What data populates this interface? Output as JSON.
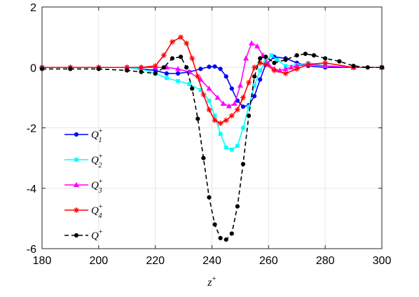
{
  "chart_data": {
    "type": "line",
    "title": "",
    "xlabel": "z+",
    "xlabel_parts": {
      "base": "z",
      "sup": "+"
    },
    "ylabel": "",
    "xlim": [
      180,
      300
    ],
    "ylim": [
      -6,
      2
    ],
    "xticks": [
      180,
      200,
      220,
      240,
      260,
      280,
      300
    ],
    "yticks": [
      -6,
      -4,
      -2,
      0,
      2
    ],
    "grid": true,
    "legend_position": "lower-left",
    "series": [
      {
        "name": "Q1+",
        "label_base": "Q",
        "label_sub": "1",
        "label_sup": "+",
        "color": "#0000ff",
        "marker": "circle",
        "dash": "solid",
        "x": [
          180,
          190,
          200,
          210,
          215,
          220,
          224,
          228,
          232,
          236,
          239,
          241,
          243,
          245,
          247,
          249,
          251,
          253,
          255,
          257,
          259,
          262,
          266,
          270,
          274,
          280,
          290,
          300
        ],
        "y": [
          0,
          0,
          0,
          0,
          -0.05,
          -0.1,
          -0.2,
          -0.2,
          -0.15,
          -0.05,
          0.02,
          0.03,
          -0.05,
          -0.3,
          -0.7,
          -1.1,
          -1.3,
          -1.25,
          -0.95,
          -0.4,
          0.1,
          0.35,
          0.3,
          0.15,
          0.05,
          0,
          0,
          0
        ]
      },
      {
        "name": "Q2+",
        "label_base": "Q",
        "label_sub": "2",
        "label_sup": "+",
        "color": "#00ffff",
        "marker": "square",
        "dash": "solid",
        "x": [
          180,
          190,
          200,
          210,
          215,
          220,
          224,
          228,
          232,
          236,
          239,
          241,
          243,
          245,
          247,
          249,
          251,
          253,
          255,
          257,
          259,
          261,
          263,
          266,
          270,
          274,
          280,
          290,
          300
        ],
        "y": [
          0,
          0,
          0,
          0,
          -0.05,
          -0.2,
          -0.35,
          -0.45,
          -0.55,
          -0.75,
          -1.1,
          -1.6,
          -2.2,
          -2.65,
          -2.72,
          -2.6,
          -2.0,
          -1.3,
          -0.6,
          -0.1,
          0.2,
          0.4,
          0.25,
          0.05,
          0.08,
          0.15,
          0.05,
          0,
          0
        ]
      },
      {
        "name": "Q3+",
        "label_base": "Q",
        "label_sub": "3",
        "label_sup": "+",
        "color": "#ff00ff",
        "marker": "triangle",
        "dash": "solid",
        "x": [
          180,
          190,
          200,
          210,
          215,
          220,
          224,
          228,
          232,
          236,
          239,
          242,
          244,
          246,
          248,
          250,
          252,
          254,
          256,
          258,
          260,
          262,
          264,
          266,
          268,
          270,
          274,
          280,
          290,
          300
        ],
        "y": [
          0,
          0,
          0,
          0,
          0,
          0,
          0,
          -0.05,
          -0.15,
          -0.4,
          -0.7,
          -1.0,
          -1.2,
          -1.28,
          -1.2,
          -0.6,
          0.3,
          0.8,
          0.7,
          0.4,
          0.1,
          -0.05,
          -0.1,
          -0.05,
          0,
          0.05,
          0.1,
          0.05,
          0,
          0
        ]
      },
      {
        "name": "Q4+",
        "label_base": "Q",
        "label_sub": "4",
        "label_sup": "+",
        "color": "#ff0000",
        "marker": "star",
        "dash": "solid",
        "x": [
          180,
          190,
          200,
          210,
          215,
          220,
          223,
          226,
          229,
          231,
          233,
          235,
          237,
          239,
          241,
          243,
          245,
          247,
          249,
          251,
          253,
          255,
          257,
          259,
          262,
          266,
          270,
          274,
          280,
          290,
          300
        ],
        "y": [
          0,
          0,
          0,
          0,
          0,
          0.05,
          0.4,
          0.85,
          1.0,
          0.8,
          0.3,
          -0.3,
          -0.9,
          -1.4,
          -1.75,
          -1.85,
          -1.75,
          -1.6,
          -1.4,
          -1.0,
          -0.5,
          0,
          0.15,
          0.1,
          -0.1,
          -0.2,
          -0.05,
          0.1,
          0.15,
          0,
          0
        ]
      },
      {
        "name": "Q+",
        "label_base": "Q",
        "label_sub": "",
        "label_sup": "+",
        "color": "#000000",
        "marker": "circle",
        "dash": "dashed",
        "x": [
          180,
          190,
          200,
          210,
          215,
          220,
          223,
          226,
          229,
          231,
          233,
          235,
          237,
          239,
          241,
          243,
          245,
          247,
          249,
          251,
          253,
          255,
          257,
          259,
          262,
          266,
          270,
          273,
          276,
          280,
          285,
          290,
          295,
          300
        ],
        "y": [
          -0.05,
          -0.05,
          -0.05,
          -0.1,
          -0.15,
          -0.2,
          0,
          0.3,
          0.35,
          0,
          -0.7,
          -1.7,
          -3.0,
          -4.3,
          -5.2,
          -5.65,
          -5.7,
          -5.5,
          -4.6,
          -3.2,
          -1.6,
          -0.3,
          0.3,
          0.35,
          0.15,
          0.25,
          0.4,
          0.45,
          0.4,
          0.3,
          0.2,
          0.05,
          0,
          0
        ]
      }
    ]
  }
}
